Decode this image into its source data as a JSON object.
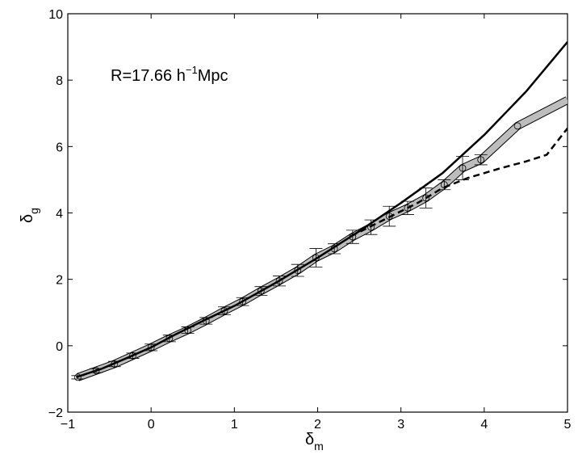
{
  "chart_data": {
    "type": "line",
    "title": "",
    "xlabel": "δ",
    "xlabel_sub": "m",
    "ylabel": "δ",
    "ylabel_sub": "g",
    "xlim": [
      -1,
      5
    ],
    "ylim": [
      -2,
      10
    ],
    "xticks": [
      -1,
      0,
      1,
      2,
      3,
      4,
      5
    ],
    "yticks": [
      -2,
      0,
      2,
      4,
      6,
      8,
      10
    ],
    "xtick_labels": [
      "−1",
      "0",
      "1",
      "2",
      "3",
      "4",
      "5"
    ],
    "ytick_labels": [
      "−2",
      "0",
      "2",
      "4",
      "6",
      "8",
      "10"
    ],
    "grid": false,
    "annotation": {
      "prefix": "R=17.66 h",
      "sup": "−1",
      "suffix": "Mpc"
    },
    "series": [
      {
        "style": "solid-black",
        "x": [
          -0.9,
          -0.6,
          -0.3,
          0.0,
          0.3,
          0.6,
          1.0,
          1.5,
          2.0,
          2.5,
          3.0,
          3.5,
          4.0,
          4.5,
          5.0
        ],
        "y": [
          -0.95,
          -0.7,
          -0.38,
          -0.05,
          0.35,
          0.72,
          1.2,
          1.9,
          2.65,
          3.45,
          4.3,
          5.2,
          6.35,
          7.65,
          9.15
        ]
      },
      {
        "style": "dashed-black",
        "x": [
          2.4,
          2.8,
          3.2,
          3.5,
          3.8,
          4.2,
          4.5,
          4.75,
          5.0
        ],
        "y": [
          3.3,
          3.8,
          4.3,
          4.75,
          5.05,
          5.35,
          5.55,
          5.75,
          6.55
        ]
      },
      {
        "style": "gray-band-with-markers",
        "x": [
          -0.88,
          -0.66,
          -0.44,
          -0.22,
          0.0,
          0.22,
          0.44,
          0.66,
          0.88,
          1.1,
          1.32,
          1.54,
          1.76,
          1.98,
          2.2,
          2.42,
          2.64,
          2.86,
          3.08,
          3.3,
          3.52,
          3.74,
          3.96,
          4.4,
          5.0
        ],
        "y": [
          -0.95,
          -0.75,
          -0.55,
          -0.3,
          -0.05,
          0.22,
          0.47,
          0.75,
          1.05,
          1.33,
          1.65,
          1.95,
          2.27,
          2.65,
          2.92,
          3.28,
          3.57,
          3.9,
          4.15,
          4.45,
          4.85,
          5.35,
          5.6,
          6.62,
          7.4
        ],
        "markers": [
          true,
          true,
          true,
          true,
          true,
          true,
          true,
          true,
          true,
          true,
          true,
          true,
          true,
          true,
          true,
          true,
          true,
          true,
          true,
          true,
          true,
          true,
          true,
          true,
          false
        ],
        "err": [
          0.05,
          0.06,
          0.08,
          0.08,
          0.1,
          0.1,
          0.1,
          0.1,
          0.12,
          0.12,
          0.13,
          0.15,
          0.18,
          0.28,
          0.15,
          0.2,
          0.22,
          0.3,
          0.2,
          0.3,
          0.15,
          0.35,
          0.15,
          0,
          0
        ]
      }
    ]
  }
}
